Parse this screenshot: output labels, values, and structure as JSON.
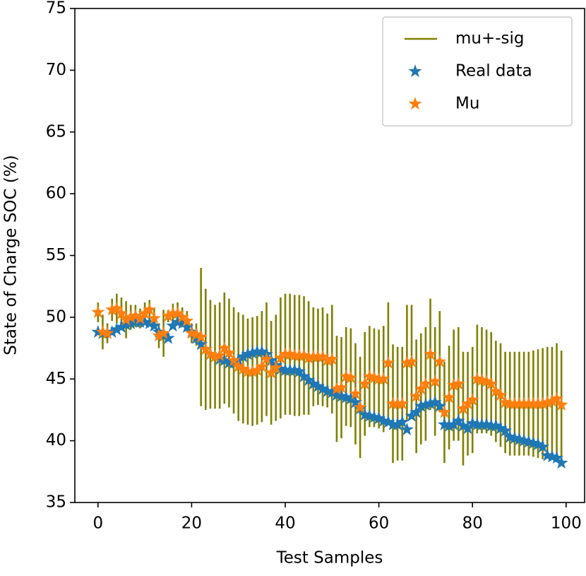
{
  "chart_data": {
    "type": "errorbar",
    "xlabel": "Test Samples",
    "ylabel": "State of Charge SOC (%)",
    "x": [
      0,
      1,
      2,
      3,
      4,
      5,
      6,
      7,
      8,
      9,
      10,
      11,
      12,
      13,
      14,
      15,
      16,
      17,
      18,
      19,
      20,
      21,
      22,
      23,
      24,
      25,
      26,
      27,
      28,
      29,
      30,
      31,
      32,
      33,
      34,
      35,
      36,
      37,
      38,
      39,
      40,
      41,
      42,
      43,
      44,
      45,
      46,
      47,
      48,
      49,
      50,
      51,
      52,
      53,
      54,
      55,
      56,
      57,
      58,
      59,
      60,
      61,
      62,
      63,
      64,
      65,
      66,
      67,
      68,
      69,
      70,
      71,
      72,
      73,
      74,
      75,
      76,
      77,
      78,
      79,
      80,
      81,
      82,
      83,
      84,
      85,
      86,
      87,
      88,
      89,
      90,
      91,
      92,
      93,
      94,
      95,
      96,
      97,
      98,
      99
    ],
    "errorbar": {
      "name": "mu+-sig",
      "color": "#808000",
      "of_series": 1,
      "values": [
        0.8,
        1.4,
        0.8,
        0.9,
        1.2,
        1.3,
        1.5,
        1.0,
        0.9,
        0.8,
        0.9,
        0.8,
        0.8,
        1.0,
        1.9,
        0.5,
        0.8,
        0.9,
        0.8,
        0.8,
        0.8,
        0.9,
        5.6,
        4.9,
        4.4,
        4.2,
        4.3,
        4.5,
        4.4,
        4.3,
        4.4,
        4.4,
        4.3,
        4.4,
        4.4,
        4.5,
        4.6,
        4.2,
        4.3,
        4.9,
        4.9,
        4.9,
        4.9,
        4.9,
        4.8,
        4.6,
        4.0,
        3.9,
        4.0,
        3.8,
        4.4,
        4.3,
        4.1,
        4.0,
        4.0,
        4.1,
        4.1,
        4.2,
        4.1,
        4.0,
        4.0,
        4.3,
        4.9,
        4.8,
        4.6,
        4.6,
        4.7,
        4.6,
        4.6,
        4.5,
        4.6,
        4.5,
        4.4,
        4.1,
        4.1,
        4.2,
        4.5,
        4.6,
        4.6,
        4.2,
        4.3,
        4.4,
        4.3,
        4.2,
        4.2,
        4.1,
        4.2,
        4.1,
        4.2,
        4.2,
        4.2,
        4.2,
        4.2,
        4.3,
        4.4,
        4.5,
        4.5,
        4.4,
        4.5,
        4.4
      ]
    },
    "series": [
      {
        "name": "Real data",
        "color": "#1f77b4",
        "values": [
          48.8,
          48.7,
          48.7,
          48.8,
          49.0,
          49.2,
          49.4,
          49.5,
          49.6,
          49.6,
          49.6,
          49.5,
          49.3,
          48.8,
          48.5,
          48.3,
          49.3,
          49.6,
          49.5,
          49.2,
          48.8,
          48.3,
          47.8,
          47.4,
          47.0,
          46.8,
          46.6,
          46.5,
          46.3,
          46.3,
          46.5,
          46.8,
          47.0,
          47.1,
          47.2,
          47.2,
          47.0,
          46.5,
          46.1,
          45.8,
          45.7,
          45.7,
          45.7,
          45.6,
          45.2,
          44.9,
          44.6,
          44.4,
          44.2,
          44.0,
          43.9,
          43.7,
          43.6,
          43.5,
          43.4,
          43.1,
          42.6,
          42.1,
          42.0,
          41.9,
          41.8,
          41.6,
          41.5,
          41.3,
          41.3,
          41.5,
          40.9,
          42.0,
          42.3,
          42.8,
          42.9,
          43.0,
          43.1,
          42.8,
          41.3,
          41.2,
          41.3,
          41.6,
          41.2,
          41.0,
          41.4,
          41.3,
          41.3,
          41.3,
          41.2,
          41.2,
          41.0,
          40.8,
          40.3,
          40.2,
          40.1,
          40.0,
          39.9,
          39.8,
          39.7,
          39.5,
          38.8,
          38.7,
          38.6,
          38.2
        ]
      },
      {
        "name": "Mu",
        "color": "#ff7f0e",
        "values": [
          50.4,
          48.8,
          48.7,
          50.6,
          50.7,
          50.3,
          49.8,
          50.0,
          50.1,
          49.9,
          50.3,
          50.6,
          49.9,
          48.5,
          48.7,
          50.1,
          50.3,
          50.3,
          50.0,
          49.7,
          48.7,
          48.6,
          48.4,
          47.4,
          47.0,
          46.8,
          46.9,
          47.5,
          47.1,
          46.5,
          46.0,
          45.8,
          45.6,
          45.6,
          45.7,
          46.0,
          46.6,
          45.5,
          45.9,
          46.7,
          47.0,
          47.0,
          46.9,
          46.9,
          46.9,
          46.7,
          46.8,
          46.8,
          46.8,
          46.5,
          46.6,
          44.2,
          44.3,
          45.2,
          45.1,
          43.8,
          42.7,
          44.6,
          45.2,
          45.1,
          45.0,
          45.0,
          46.3,
          43.0,
          43.0,
          43.0,
          46.3,
          46.4,
          43.6,
          44.2,
          44.6,
          47.0,
          44.8,
          46.4,
          42.3,
          43.5,
          44.5,
          44.6,
          42.6,
          43.0,
          43.3,
          45.0,
          44.9,
          44.8,
          44.6,
          44.0,
          43.7,
          43.1,
          43.0,
          43.0,
          43.0,
          43.0,
          43.0,
          43.0,
          43.0,
          43.0,
          43.1,
          43.2,
          43.4,
          42.9
        ]
      }
    ],
    "xlim": [
      -4.95,
      103.95
    ],
    "ylim": [
      35,
      75
    ],
    "xticks": [
      0,
      20,
      40,
      60,
      80,
      100
    ],
    "yticks": [
      35,
      40,
      45,
      50,
      55,
      60,
      65,
      70,
      75
    ],
    "legend": "upper right"
  }
}
